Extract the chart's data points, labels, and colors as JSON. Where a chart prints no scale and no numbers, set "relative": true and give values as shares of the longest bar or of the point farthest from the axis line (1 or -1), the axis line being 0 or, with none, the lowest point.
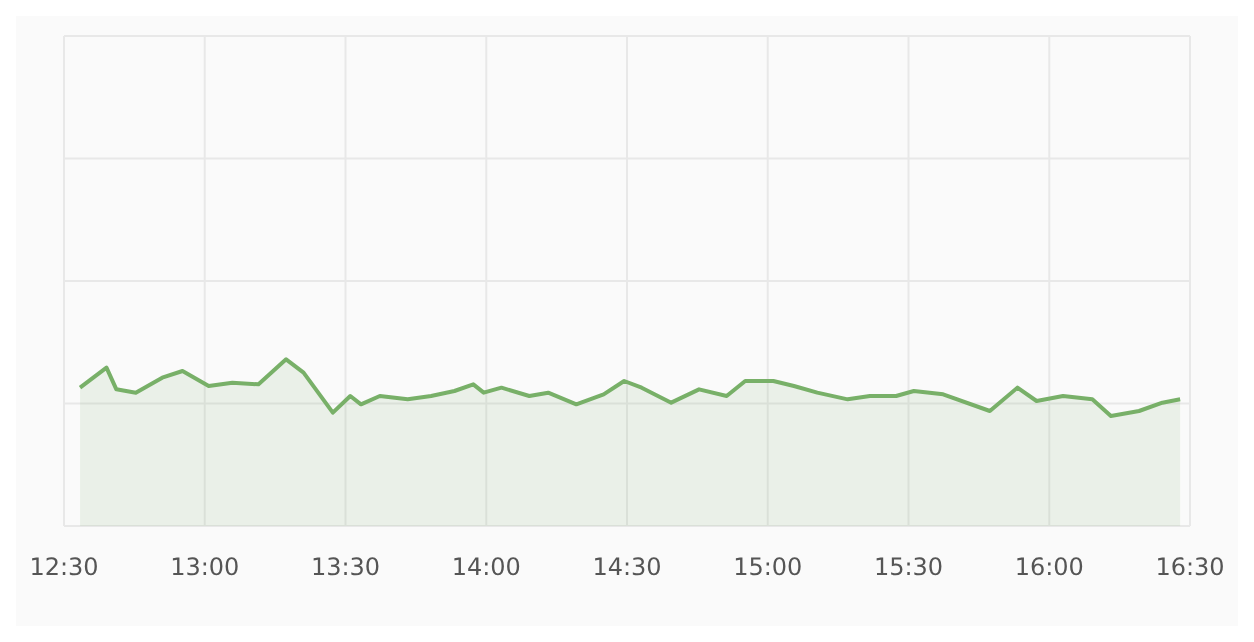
{
  "chart_data": {
    "type": "area",
    "relative": true,
    "grid": true,
    "xlim": [
      12.5,
      16.5
    ],
    "xticks": [
      {
        "value": 12.5,
        "label": "12:30"
      },
      {
        "value": 13,
        "label": "13:00"
      },
      {
        "value": 13.5,
        "label": "13:30"
      },
      {
        "value": 14,
        "label": "14:00"
      },
      {
        "value": 14.5,
        "label": "14:30"
      },
      {
        "value": 15,
        "label": "15:00"
      },
      {
        "value": 15.5,
        "label": "15:30"
      },
      {
        "value": 16,
        "label": "16:00"
      },
      {
        "value": 16.5,
        "label": "16:30"
      }
    ],
    "x": [
      12.557,
      12.651,
      12.686,
      12.755,
      12.849,
      12.921,
      13.014,
      13.098,
      13.191,
      13.289,
      13.351,
      13.455,
      13.517,
      13.555,
      13.622,
      13.721,
      13.804,
      13.887,
      13.954,
      13.991,
      14.054,
      14.153,
      14.22,
      14.32,
      14.417,
      14.49,
      14.552,
      14.657,
      14.756,
      14.854,
      14.92,
      15.02,
      15.093,
      15.176,
      15.284,
      15.363,
      15.456,
      15.519,
      15.623,
      15.789,
      15.887,
      15.955,
      16.049,
      16.153,
      16.219,
      16.319,
      16.402,
      16.465
    ],
    "series": [
      {
        "color": "#78b068",
        "values": [
          0.83,
          0.95,
          0.82,
          0.8,
          0.89,
          0.93,
          0.84,
          0.86,
          0.85,
          1.0,
          0.92,
          0.68,
          0.78,
          0.73,
          0.78,
          0.76,
          0.78,
          0.81,
          0.85,
          0.8,
          0.83,
          0.78,
          0.8,
          0.73,
          0.79,
          0.87,
          0.83,
          0.74,
          0.82,
          0.78,
          0.87,
          0.87,
          0.84,
          0.8,
          0.76,
          0.78,
          0.78,
          0.81,
          0.79,
          0.69,
          0.83,
          0.75,
          0.78,
          0.76,
          0.66,
          0.69,
          0.74,
          0.76
        ]
      }
    ]
  }
}
